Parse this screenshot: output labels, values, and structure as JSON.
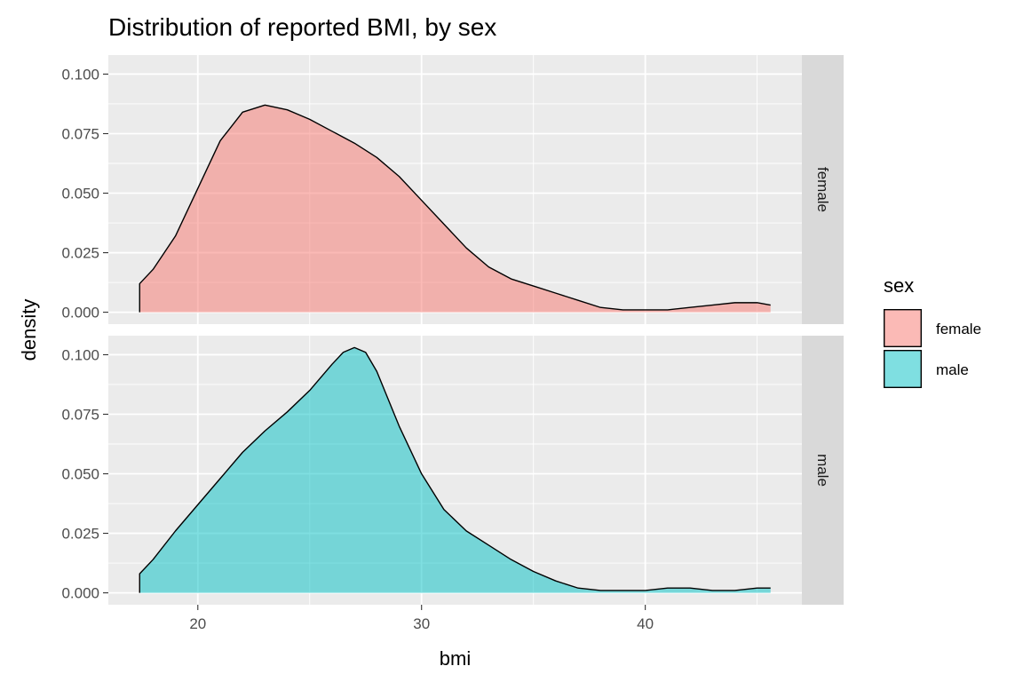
{
  "chart_data": {
    "type": "area",
    "title": "Distribution of reported BMI, by sex",
    "xlabel": "bmi",
    "ylabel": "density",
    "xlim": [
      16,
      47
    ],
    "ylim": [
      -0.005,
      0.108
    ],
    "x_ticks": [
      20,
      30,
      40
    ],
    "x_tick_labels": [
      "20",
      "30",
      "40"
    ],
    "y_ticks": [
      0,
      0.025,
      0.05,
      0.075,
      0.1
    ],
    "y_tick_labels": [
      "0.000",
      "0.025",
      "0.050",
      "0.075",
      "0.100"
    ],
    "grid": true,
    "facets": [
      "female",
      "male"
    ],
    "legend": {
      "title": "sex",
      "position": "right",
      "entries": [
        {
          "label": "female",
          "color": "#F8766D"
        },
        {
          "label": "male",
          "color": "#00BFC4"
        }
      ]
    },
    "series": [
      {
        "name": "female",
        "color": "#F8766D",
        "x": [
          17.4,
          18,
          19,
          20,
          21,
          22,
          23,
          24,
          25,
          26,
          27,
          28,
          29,
          30,
          31,
          32,
          33,
          34,
          35,
          36,
          37,
          38,
          39,
          40,
          41,
          42,
          43,
          44,
          45,
          45.6
        ],
        "y": [
          0.012,
          0.018,
          0.032,
          0.052,
          0.072,
          0.084,
          0.087,
          0.085,
          0.081,
          0.076,
          0.071,
          0.065,
          0.057,
          0.047,
          0.037,
          0.027,
          0.019,
          0.014,
          0.011,
          0.008,
          0.005,
          0.002,
          0.001,
          0.001,
          0.001,
          0.002,
          0.003,
          0.004,
          0.004,
          0.003
        ]
      },
      {
        "name": "male",
        "color": "#00BFC4",
        "x": [
          17.4,
          18,
          19,
          20,
          21,
          22,
          23,
          24,
          25,
          26,
          26.5,
          27,
          27.5,
          28,
          29,
          30,
          31,
          32,
          33,
          34,
          35,
          36,
          37,
          38,
          39,
          40,
          41,
          42,
          43,
          44,
          45,
          45.6
        ],
        "y": [
          0.008,
          0.014,
          0.026,
          0.037,
          0.048,
          0.059,
          0.068,
          0.076,
          0.085,
          0.096,
          0.101,
          0.103,
          0.101,
          0.093,
          0.07,
          0.05,
          0.035,
          0.026,
          0.02,
          0.014,
          0.009,
          0.005,
          0.002,
          0.001,
          0.001,
          0.001,
          0.002,
          0.002,
          0.001,
          0.001,
          0.002,
          0.002
        ]
      }
    ]
  }
}
